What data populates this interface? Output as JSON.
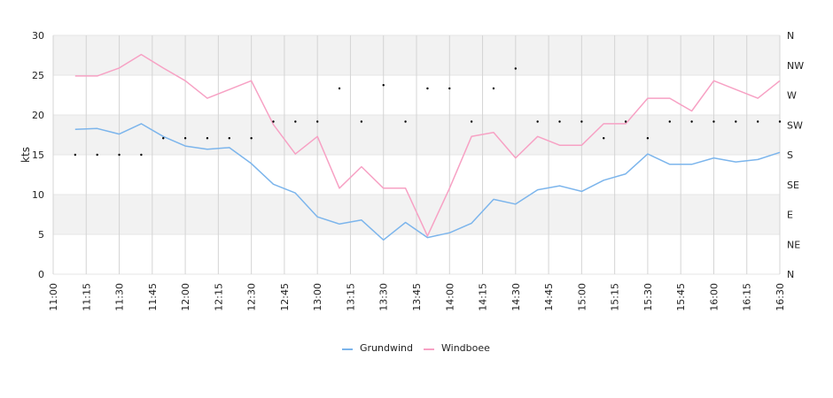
{
  "chart_data": {
    "type": "line",
    "ylabel": "kts",
    "ylim": [
      0,
      30
    ],
    "y_ticks": [
      "0",
      "5",
      "10",
      "15",
      "20",
      "25",
      "30"
    ],
    "right_axis": {
      "labels": [
        "N",
        "NE",
        "E",
        "SE",
        "S",
        "SW",
        "W",
        "NW",
        "N"
      ],
      "range_deg": [
        0,
        360
      ]
    },
    "x_tick_labels": [
      "11:00",
      "11:15",
      "11:30",
      "11:45",
      "12:00",
      "12:15",
      "12:30",
      "12:45",
      "13:00",
      "13:15",
      "13:30",
      "13:45",
      "14:00",
      "14:15",
      "14:30",
      "14:45",
      "15:00",
      "15:15",
      "15:30",
      "15:45",
      "16:00",
      "16:15",
      "16:30"
    ],
    "x": [
      "11:10",
      "11:20",
      "11:30",
      "11:40",
      "11:50",
      "12:00",
      "12:10",
      "12:20",
      "12:30",
      "12:40",
      "12:50",
      "13:00",
      "13:10",
      "13:20",
      "13:30",
      "13:40",
      "13:50",
      "14:00",
      "14:10",
      "14:20",
      "14:30",
      "14:40",
      "14:50",
      "15:00",
      "15:10",
      "15:20",
      "15:30",
      "15:40",
      "15:50",
      "16:00",
      "16:10",
      "16:20",
      "16:30"
    ],
    "series": [
      {
        "name": "Grundwind",
        "color": "#7cb5ec",
        "values": [
          18.2,
          18.3,
          17.6,
          18.9,
          17.3,
          16.1,
          15.7,
          15.9,
          13.9,
          11.3,
          10.2,
          7.2,
          6.3,
          6.8,
          4.3,
          6.5,
          4.6,
          5.2,
          6.4,
          9.4,
          8.8,
          10.6,
          11.1,
          10.4,
          11.8,
          12.6,
          15.1,
          13.8,
          13.8,
          14.6,
          14.1,
          14.4,
          15.3
        ]
      },
      {
        "name": "Windboee",
        "color": "#f7a1c4",
        "values": [
          24.9,
          24.9,
          25.9,
          27.6,
          25.9,
          24.3,
          22.1,
          23.2,
          24.3,
          18.8,
          15.1,
          17.3,
          10.8,
          13.5,
          10.8,
          10.8,
          4.8,
          10.8,
          17.3,
          17.8,
          14.6,
          17.3,
          16.2,
          16.2,
          18.9,
          18.9,
          22.1,
          22.1,
          20.5,
          24.3,
          23.2,
          22.1,
          24.3
        ]
      }
    ],
    "wind_direction_deg": [
      180,
      180,
      180,
      180,
      205,
      205,
      205,
      205,
      205,
      230,
      230,
      230,
      280,
      230,
      285,
      230,
      280,
      280,
      230,
      280,
      310,
      230,
      230,
      230,
      205,
      230,
      205,
      230,
      230,
      230,
      230,
      230,
      230
    ],
    "grid": true,
    "legend_position": "bottom-center"
  }
}
